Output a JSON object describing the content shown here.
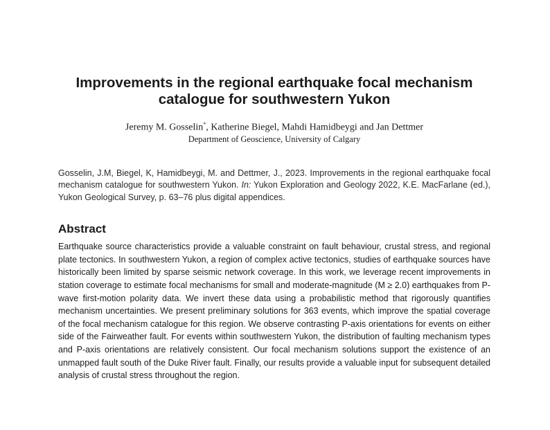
{
  "title": {
    "line1": "Improvements in the regional earthquake focal mechanism",
    "line2": "catalogue for southwestern Yukon"
  },
  "authors": {
    "first_author": "Jeremy M. Gosselin",
    "first_author_mark": "*",
    "others": ", Katherine Biegel, Mahdi Hamidbeygi and Jan Dettmer"
  },
  "affiliation": "Department of Geoscience, University of Calgary",
  "citation": {
    "part1": "Gosselin, J.M, Biegel, K, Hamidbeygi, M. and Dettmer, J., 2023. Improvements in the regional earthquake focal mechanism catalogue for southwestern Yukon. ",
    "in_label": "In:",
    "part2": " Yukon Exploration and Geology 2022, K.E. MacFarlane (ed.), Yukon Geological Survey, p. 63–76 plus digital appendices."
  },
  "abstract": {
    "heading": "Abstract",
    "body": "Earthquake source characteristics provide a valuable constraint on fault behaviour, crustal stress, and regional plate tectonics. In southwestern Yukon, a region of complex active tectonics, studies of earthquake sources have historically been limited by sparse seismic network coverage. In this work, we leverage recent improvements in station coverage to estimate focal mechanisms for small and moderate-magnitude (M ≥ 2.0) earthquakes from P-wave first-motion polarity data. We invert these data using a probabilistic method that rigorously quantifies mechanism uncertainties. We present preliminary solutions for 363 events, which improve the spatial coverage of the focal mechanism catalogue for this region. We observe contrasting P-axis orientations for events on either side of the Fairweather fault. For events within southwestern Yukon, the distribution of faulting mechanism types and P-axis orientations are relatively consistent. Our focal mechanism solutions support the existence of an unmapped fault south of the Duke River fault. Finally, our results provide a valuable input for subsequent detailed analysis of crustal stress throughout the region."
  }
}
